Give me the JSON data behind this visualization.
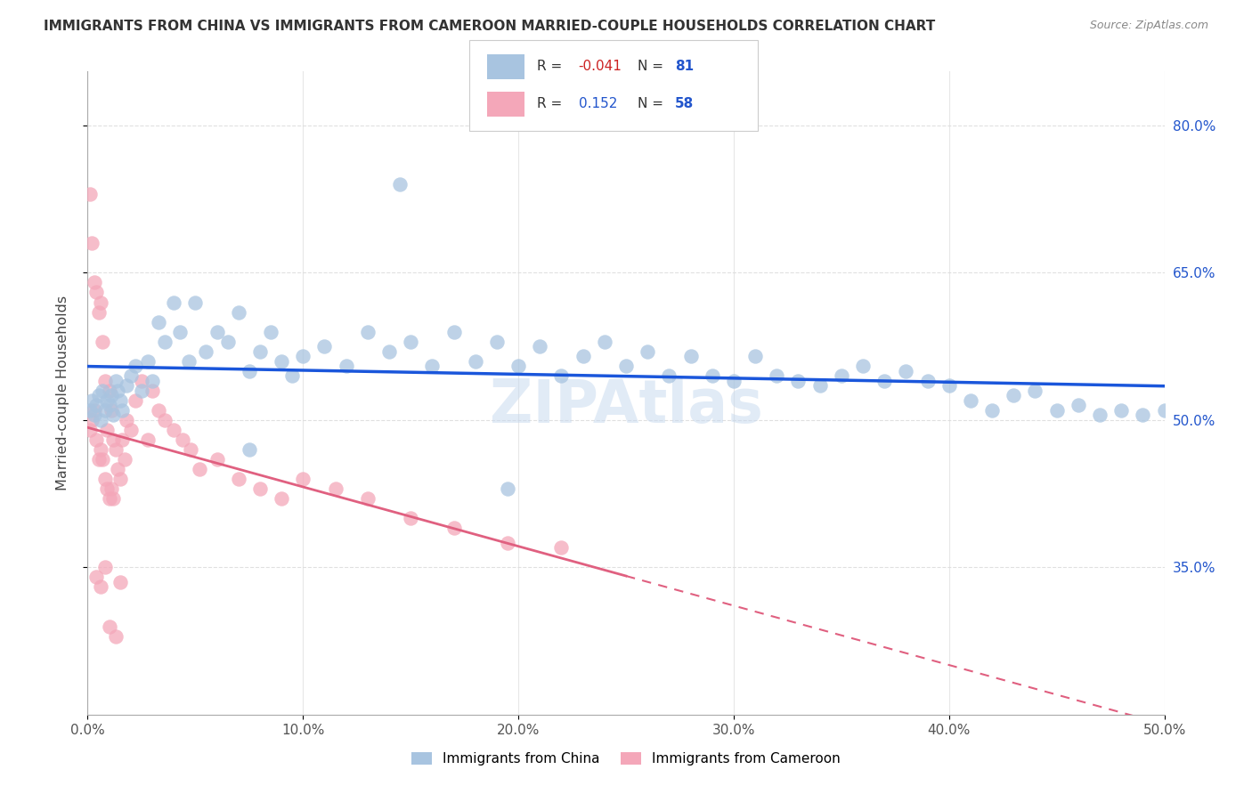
{
  "title": "IMMIGRANTS FROM CHINA VS IMMIGRANTS FROM CAMEROON MARRIED-COUPLE HOUSEHOLDS CORRELATION CHART",
  "source": "Source: ZipAtlas.com",
  "ylabel": "Married-couple Households",
  "xlim": [
    0.0,
    0.5
  ],
  "ylim": [
    0.2,
    0.855
  ],
  "xtick_vals": [
    0.0,
    0.1,
    0.2,
    0.3,
    0.4,
    0.5
  ],
  "xtick_labels": [
    "0.0%",
    "10.0%",
    "20.0%",
    "30.0%",
    "40.0%",
    "50.0%"
  ],
  "ytick_vals": [
    0.35,
    0.5,
    0.65,
    0.8
  ],
  "ytick_labels_right": [
    "35.0%",
    "50.0%",
    "65.0%",
    "80.0%"
  ],
  "china_color": "#a8c4e0",
  "cameroon_color": "#f4a7b9",
  "china_line_color": "#1a56db",
  "cameroon_line_color": "#e06080",
  "china_R": -0.041,
  "china_N": 81,
  "cameroon_R": 0.152,
  "cameroon_N": 58,
  "watermark": "ZIPAtlas",
  "background_color": "#ffffff",
  "grid_color": "#dddddd",
  "title_color": "#333333",
  "source_color": "#888888",
  "right_axis_color": "#2255cc",
  "legend_border_color": "#cccccc",
  "china_x": [
    0.001,
    0.002,
    0.003,
    0.004,
    0.005,
    0.006,
    0.007,
    0.008,
    0.009,
    0.01,
    0.011,
    0.012,
    0.013,
    0.014,
    0.015,
    0.016,
    0.018,
    0.02,
    0.022,
    0.025,
    0.028,
    0.03,
    0.033,
    0.036,
    0.04,
    0.043,
    0.047,
    0.05,
    0.055,
    0.06,
    0.065,
    0.07,
    0.075,
    0.08,
    0.085,
    0.09,
    0.095,
    0.1,
    0.11,
    0.12,
    0.13,
    0.14,
    0.15,
    0.16,
    0.17,
    0.18,
    0.19,
    0.2,
    0.21,
    0.22,
    0.23,
    0.24,
    0.25,
    0.26,
    0.27,
    0.28,
    0.29,
    0.3,
    0.31,
    0.32,
    0.33,
    0.34,
    0.35,
    0.36,
    0.37,
    0.38,
    0.39,
    0.4,
    0.41,
    0.42,
    0.43,
    0.44,
    0.45,
    0.46,
    0.47,
    0.48,
    0.49,
    0.5,
    0.195,
    0.145,
    0.075
  ],
  "china_y": [
    0.51,
    0.52,
    0.505,
    0.515,
    0.525,
    0.5,
    0.53,
    0.51,
    0.52,
    0.515,
    0.525,
    0.505,
    0.54,
    0.53,
    0.52,
    0.51,
    0.535,
    0.545,
    0.555,
    0.53,
    0.56,
    0.54,
    0.6,
    0.58,
    0.62,
    0.59,
    0.56,
    0.62,
    0.57,
    0.59,
    0.58,
    0.61,
    0.55,
    0.57,
    0.59,
    0.56,
    0.545,
    0.565,
    0.575,
    0.555,
    0.59,
    0.57,
    0.58,
    0.555,
    0.59,
    0.56,
    0.58,
    0.555,
    0.575,
    0.545,
    0.565,
    0.58,
    0.555,
    0.57,
    0.545,
    0.565,
    0.545,
    0.54,
    0.565,
    0.545,
    0.54,
    0.535,
    0.545,
    0.555,
    0.54,
    0.55,
    0.54,
    0.535,
    0.52,
    0.51,
    0.525,
    0.53,
    0.51,
    0.515,
    0.505,
    0.51,
    0.505,
    0.51,
    0.43,
    0.74,
    0.47
  ],
  "cameroon_x": [
    0.001,
    0.001,
    0.002,
    0.002,
    0.003,
    0.003,
    0.004,
    0.004,
    0.005,
    0.005,
    0.006,
    0.006,
    0.007,
    0.007,
    0.008,
    0.008,
    0.009,
    0.009,
    0.01,
    0.01,
    0.011,
    0.011,
    0.012,
    0.012,
    0.013,
    0.014,
    0.015,
    0.016,
    0.017,
    0.018,
    0.02,
    0.022,
    0.025,
    0.028,
    0.03,
    0.033,
    0.036,
    0.04,
    0.044,
    0.048,
    0.052,
    0.06,
    0.07,
    0.08,
    0.09,
    0.1,
    0.115,
    0.13,
    0.15,
    0.17,
    0.195,
    0.22,
    0.008,
    0.015,
    0.004,
    0.006,
    0.01,
    0.013
  ],
  "cameroon_y": [
    0.73,
    0.49,
    0.68,
    0.5,
    0.64,
    0.51,
    0.63,
    0.48,
    0.61,
    0.46,
    0.62,
    0.47,
    0.58,
    0.46,
    0.54,
    0.44,
    0.49,
    0.43,
    0.53,
    0.42,
    0.51,
    0.43,
    0.48,
    0.42,
    0.47,
    0.45,
    0.44,
    0.48,
    0.46,
    0.5,
    0.49,
    0.52,
    0.54,
    0.48,
    0.53,
    0.51,
    0.5,
    0.49,
    0.48,
    0.47,
    0.45,
    0.46,
    0.44,
    0.43,
    0.42,
    0.44,
    0.43,
    0.42,
    0.4,
    0.39,
    0.375,
    0.37,
    0.35,
    0.335,
    0.34,
    0.33,
    0.29,
    0.28
  ]
}
